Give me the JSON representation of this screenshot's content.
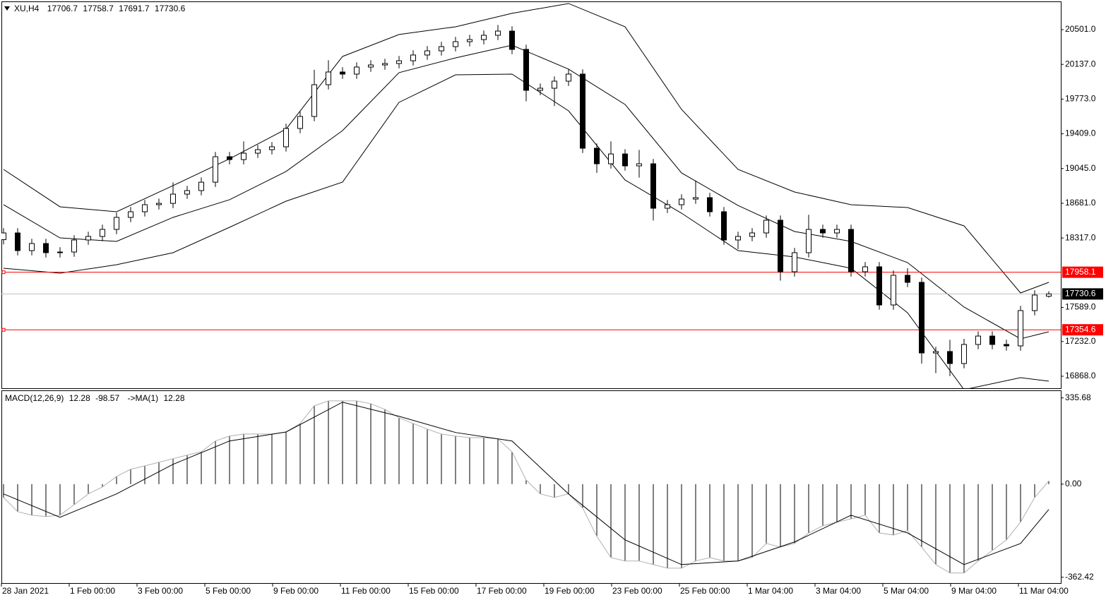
{
  "chart_data": [
    {
      "type": "candlestick",
      "title": "XU,H4",
      "open": [
        18300,
        18370,
        18185,
        18259,
        18163,
        18170,
        18296,
        18333,
        18407,
        18533,
        18592,
        18666,
        18680,
        18777,
        18814,
        18902,
        19169,
        19139,
        19206,
        19243,
        19273,
        19465,
        19591,
        19924,
        20057,
        20035,
        20109,
        20131,
        20146,
        20175,
        20235,
        20279,
        20323,
        20375,
        20397,
        20442,
        20486,
        20294,
        19865,
        19887,
        19961,
        20035,
        19258,
        19095,
        19198,
        19073,
        19095,
        18629,
        18666,
        18725,
        18740,
        18592,
        18296,
        18333,
        18370,
        18503,
        17963,
        18163,
        18407,
        18370,
        18407,
        17963,
        18015,
        17615,
        17926,
        17852,
        17112,
        17127,
        17001,
        17201,
        17289,
        17201,
        17186,
        17556,
        17706.7
      ],
      "high": [
        18420,
        18420,
        18309,
        18309,
        18220,
        18346,
        18383,
        18457,
        18583,
        18642,
        18716,
        18730,
        18900,
        18864,
        18952,
        19219,
        19219,
        19330,
        19293,
        19323,
        19515,
        19641,
        20080,
        20180,
        20107,
        20159,
        20181,
        20196,
        20225,
        20285,
        20329,
        20373,
        20425,
        20447,
        20492,
        20550,
        20536,
        20344,
        19937,
        20011,
        20085,
        20085,
        19308,
        19330,
        19248,
        19240,
        19145,
        18716,
        18775,
        18920,
        18790,
        18642,
        18383,
        18420,
        18553,
        18553,
        18213,
        18560,
        18457,
        18457,
        18457,
        18065,
        18065,
        17976,
        18000,
        17902,
        17177,
        17250,
        17260,
        17339,
        17339,
        17251,
        17606,
        17769,
        17758.7
      ],
      "low": [
        18250,
        18135,
        18135,
        18113,
        18113,
        18120,
        18246,
        18283,
        18357,
        18483,
        18542,
        18616,
        18630,
        18727,
        18764,
        18852,
        19089,
        19089,
        19156,
        19193,
        19223,
        19415,
        19541,
        19874,
        19985,
        19985,
        20059,
        20081,
        20096,
        20125,
        20185,
        20229,
        20273,
        20325,
        20347,
        20392,
        20244,
        19750,
        19815,
        19700,
        19911,
        19208,
        19000,
        19045,
        19023,
        18950,
        18500,
        18579,
        18616,
        18675,
        18542,
        18246,
        18200,
        18283,
        18320,
        17870,
        17913,
        18113,
        18320,
        18320,
        17913,
        17913,
        17565,
        17565,
        17802,
        17000,
        16900,
        16870,
        16951,
        17151,
        17151,
        17136,
        17136,
        17506,
        17691.7
      ],
      "close": [
        18370,
        18185,
        18259,
        18163,
        18170,
        18296,
        18333,
        18407,
        18533,
        18592,
        18666,
        18680,
        18777,
        18814,
        18902,
        19169,
        19139,
        19206,
        19243,
        19273,
        19465,
        19591,
        19924,
        20057,
        20035,
        20109,
        20131,
        20146,
        20175,
        20235,
        20279,
        20323,
        20375,
        20397,
        20442,
        20486,
        20294,
        19865,
        19887,
        19961,
        20035,
        19258,
        19095,
        19198,
        19073,
        19095,
        18629,
        18666,
        18725,
        18740,
        18592,
        18296,
        18333,
        18370,
        18503,
        17963,
        18163,
        18407,
        18370,
        18407,
        17963,
        18015,
        17615,
        17926,
        17852,
        17112,
        17127,
        17001,
        17201,
        17289,
        17201,
        17186,
        17556,
        17719,
        17730.6
      ],
      "bands": {
        "x": [
          0,
          4,
          8,
          12,
          16,
          20,
          24,
          28,
          32,
          36,
          40,
          44,
          48,
          52,
          56,
          60,
          64,
          68,
          72,
          74
        ],
        "upper": [
          19036,
          18644,
          18592,
          18866,
          19147,
          19458,
          20220,
          20450,
          20531,
          20672,
          20775,
          20531,
          19665,
          19036,
          18799,
          18666,
          18636,
          18444,
          17741,
          17852
        ],
        "middle": [
          18666,
          18318,
          18281,
          18533,
          18718,
          19014,
          19443,
          20050,
          20205,
          20338,
          20087,
          19717,
          18999,
          18658,
          18385,
          18281,
          18059,
          17593,
          17260,
          17334
        ],
        "lower": [
          18000,
          17948,
          18037,
          18163,
          18429,
          18703,
          18903,
          19739,
          20027,
          20035,
          19650,
          18925,
          18577,
          18185,
          18118,
          18000,
          17533,
          16727,
          16853,
          16816
        ],
        "color": "#000000"
      },
      "levels": [
        17958.1,
        17354.6
      ],
      "level_color": "#ff0000",
      "current_color": "#c0c0c0",
      "ylim": [
        16742,
        20797
      ],
      "yticks": [
        {
          "value": 20501,
          "label": "20501.0"
        },
        {
          "value": 20137,
          "label": "20137.0"
        },
        {
          "value": 19773,
          "label": "19773.0"
        },
        {
          "value": 19409,
          "label": "19409.0"
        },
        {
          "value": 19045,
          "label": "19045.0"
        },
        {
          "value": 18681,
          "label": "18681.0"
        },
        {
          "value": 18317,
          "label": "18317.0"
        },
        {
          "value": 17589,
          "label": "17589.0"
        },
        {
          "value": 17232,
          "label": "17232.0"
        },
        {
          "value": 16868,
          "label": "16868.0"
        }
      ],
      "x_labels": [
        "28 Jan 2021",
        "1 Feb 00:00",
        "3 Feb 00:00",
        "5 Feb 00:00",
        "9 Feb 00:00",
        "11 Feb 00:00",
        "15 Feb 00:00",
        "17 Feb 00:00",
        "19 Feb 00:00",
        "23 Feb 00:00",
        "25 Feb 00:00",
        "1 Mar 04:00",
        "3 Mar 04:00",
        "5 Mar 04:00",
        "9 Mar 04:00",
        "11 Mar 04:00"
      ]
    },
    {
      "type": "macd",
      "title": "MACD(12,26,9)",
      "signal_label": "->MA(1)",
      "values": [
        -52,
        -107,
        -121,
        -126,
        -121,
        -80,
        -38,
        -11,
        30,
        58,
        71,
        85,
        99,
        113,
        126,
        168,
        187,
        195,
        195,
        195,
        203,
        236,
        305,
        324,
        324,
        324,
        313,
        291,
        258,
        236,
        214,
        195,
        187,
        181,
        181,
        176,
        126,
        16,
        -38,
        -52,
        -38,
        -93,
        -203,
        -286,
        -299,
        -299,
        -313,
        -327,
        -327,
        -299,
        -286,
        -299,
        -299,
        -286,
        -231,
        -245,
        -231,
        -190,
        -162,
        -148,
        -135,
        -121,
        -190,
        -198,
        -181,
        -245,
        -313,
        -346,
        -346,
        -299,
        -258,
        -217,
        -148,
        -52,
        12.28
      ],
      "color": "#000000",
      "signal_x": [
        0,
        4,
        8,
        12,
        16,
        20,
        24,
        28,
        32,
        36,
        40,
        44,
        48,
        52,
        56,
        60,
        64,
        68,
        72,
        74
      ],
      "signal": [
        -38,
        -129,
        -38,
        77,
        168,
        203,
        319,
        264,
        201,
        168,
        -38,
        -217,
        -313,
        -299,
        -225,
        -121,
        -190,
        -313,
        -231,
        -98.57
      ],
      "ylim": [
        -385,
        365
      ],
      "yticks": [
        335.68,
        {
          "value": 0,
          "label": "0.00"
        },
        -362.42
      ]
    }
  ]
}
